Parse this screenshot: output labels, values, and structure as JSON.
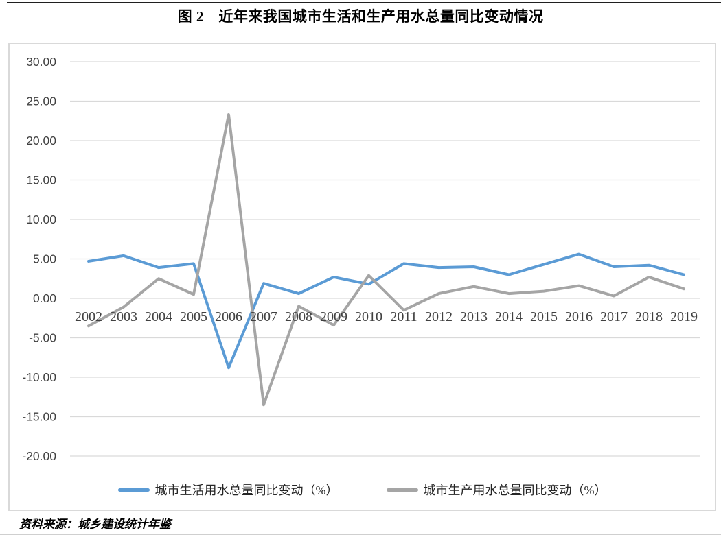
{
  "page": {
    "title": "图 2　近年来我国城市生活和生产用水总量同比变动情况",
    "source_note": "资料来源：城乡建设统计年鉴"
  },
  "colors": {
    "series_life_blue": "#5B9BD5",
    "series_production_gray": "#A5A5A5",
    "gridline": "#D9D9D9",
    "axis_text": "#404040",
    "chart_border": "#D9D9D9",
    "top_rule": "#1F1F1F"
  },
  "chart_data": {
    "type": "line",
    "title": "图 2　近年来我国城市生活和生产用水总量同比变动情况",
    "x": [
      "2002",
      "2003",
      "2004",
      "2005",
      "2006",
      "2007",
      "2008",
      "2009",
      "2010",
      "2011",
      "2012",
      "2013",
      "2014",
      "2015",
      "2016",
      "2017",
      "2018",
      "2019"
    ],
    "series": [
      {
        "name": "城市生活用水总量同比变动（%）",
        "color": "#5B9BD5",
        "values": [
          4.7,
          5.4,
          3.9,
          4.4,
          -8.8,
          1.9,
          0.6,
          2.7,
          1.8,
          4.4,
          3.9,
          4.0,
          3.0,
          4.3,
          5.6,
          4.0,
          4.2,
          3.0
        ]
      },
      {
        "name": "城市生产用水总量同比变动（%）",
        "color": "#A5A5A5",
        "values": [
          -3.5,
          -1.1,
          2.5,
          0.5,
          23.3,
          -13.5,
          -1.0,
          -3.4,
          2.9,
          -1.5,
          0.6,
          1.5,
          0.6,
          0.9,
          1.6,
          0.3,
          2.7,
          1.2
        ]
      }
    ],
    "ylim": [
      -20,
      30
    ],
    "ytick_step": 5,
    "ytick_labels": [
      "30.00",
      "25.00",
      "20.00",
      "15.00",
      "10.00",
      "5.00",
      "0.00",
      "-5.00",
      "-10.00",
      "-15.00",
      "-20.00"
    ],
    "xlabel": "",
    "ylabel": "",
    "grid": true,
    "legend_position": "bottom"
  }
}
